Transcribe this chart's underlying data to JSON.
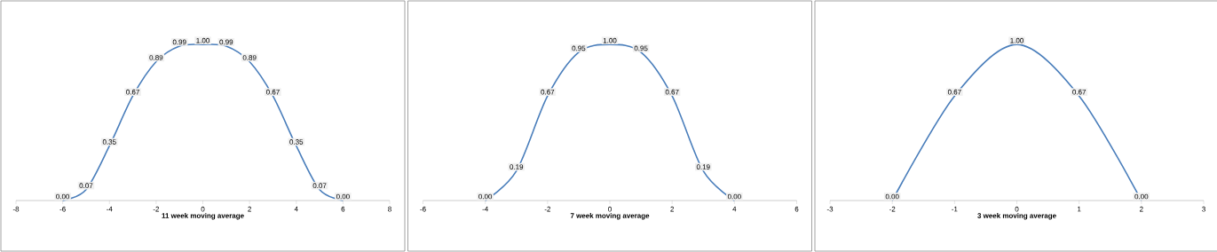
{
  "chart_data": [
    {
      "type": "line",
      "xlabel": "11 week moving average",
      "x": [
        -6,
        -5,
        -4,
        -3,
        -2,
        -1,
        0,
        1,
        2,
        3,
        4,
        5,
        6
      ],
      "values": [
        0,
        0.07,
        0.35,
        0.67,
        0.89,
        0.99,
        1,
        0.99,
        0.89,
        0.67,
        0.35,
        0.07,
        0
      ],
      "value_labels": [
        "0.00",
        "0.07",
        "0.35",
        "0.67",
        "0.89",
        "0.99",
        "1.00",
        "0.99",
        "0.89",
        "0.67",
        "0.35",
        "0.07",
        "0.00"
      ],
      "color": "#4a7ebb",
      "xlim": [
        -8,
        8
      ],
      "xticks": [
        -8,
        -6,
        -4,
        -2,
        0,
        2,
        4,
        6,
        8
      ],
      "tick_labels": "x"
    },
    {
      "type": "line",
      "xlabel": "7 week moving average",
      "x": [
        -4,
        -3,
        -2,
        -1,
        0,
        1,
        2,
        3,
        4
      ],
      "values": [
        0,
        0.19,
        0.67,
        0.95,
        1,
        0.95,
        0.67,
        0.19,
        0
      ],
      "value_labels": [
        "0.00",
        "0.19",
        "0.67",
        "0.95",
        "1.00",
        "0.95",
        "0.67",
        "0.19",
        "0.00"
      ],
      "color": "#4a7ebb",
      "xlim": [
        -6,
        6
      ],
      "xticks": [
        -6,
        -4,
        -2,
        0,
        2,
        4,
        6
      ],
      "tick_labels": "x"
    },
    {
      "type": "line",
      "xlabel": "3 week moving average",
      "x": [
        -2,
        -1,
        0,
        1,
        2
      ],
      "values": [
        0,
        0.67,
        1,
        0.67,
        0
      ],
      "value_labels": [
        "0.00",
        "0.67",
        "1.00",
        "0.67",
        "0.00"
      ],
      "color": "#4a7ebb",
      "xlim": [
        -3,
        3
      ],
      "xticks": [
        -3,
        -2,
        -1,
        0,
        1,
        2,
        3
      ],
      "tick_labels": "x"
    }
  ]
}
